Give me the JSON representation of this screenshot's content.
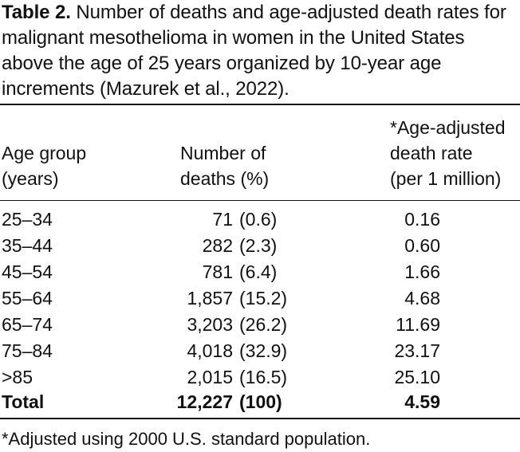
{
  "caption": {
    "label": "Table 2.",
    "text": "Number of deaths and age-adjusted death rates for malignant mesothelioma in women in the United States above the age of 25 years organized by 10-year age increments (Mazurek et al., 2022)."
  },
  "headers": {
    "age": [
      "Age group",
      "(years)"
    ],
    "deaths": [
      "Number of",
      "deaths (%)"
    ],
    "rate": [
      "*Age-adjusted",
      "death rate",
      "(per 1 million)"
    ]
  },
  "rows": [
    {
      "age": "25–34",
      "count": "71",
      "pct": "(0.6)",
      "rate": "0.16"
    },
    {
      "age": "35–44",
      "count": "282",
      "pct": "(2.3)",
      "rate": "0.60"
    },
    {
      "age": "45–54",
      "count": "781",
      "pct": "(6.4)",
      "rate": "1.66"
    },
    {
      "age": "55–64",
      "count": "1,857",
      "pct": "(15.2)",
      "rate": "4.68"
    },
    {
      "age": "65–74",
      "count": "3,203",
      "pct": "(26.2)",
      "rate": "11.69"
    },
    {
      "age": "75–84",
      "count": "4,018",
      "pct": "(32.9)",
      "rate": "23.17"
    },
    {
      "age": ">85",
      "count": "2,015",
      "pct": "(16.5)",
      "rate": "25.10"
    }
  ],
  "total": {
    "age": "Total",
    "count": "12,227",
    "pct": "(100)",
    "rate": "4.59"
  },
  "footnote": "*Adjusted using 2000 U.S. standard population."
}
